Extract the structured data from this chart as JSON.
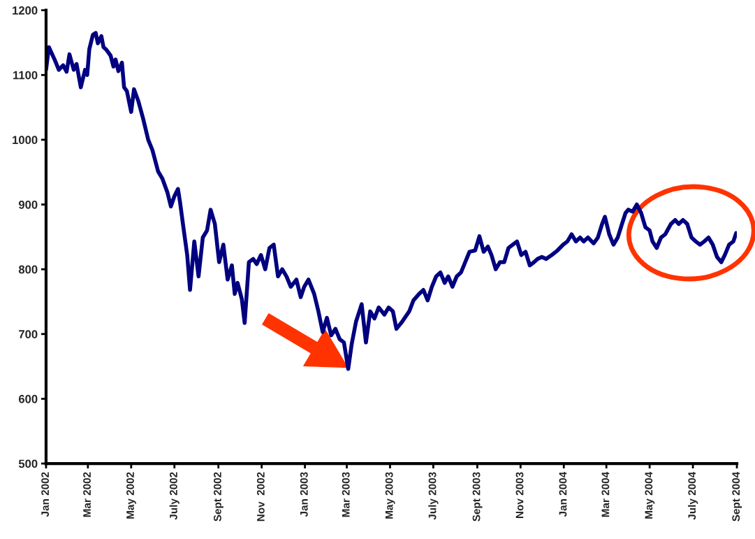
{
  "chart_data": {
    "type": "line",
    "x": [
      "2002-01-01",
      "2002-01-05",
      "2002-01-13",
      "2002-01-19",
      "2002-01-25",
      "2002-01-30",
      "2002-02-03",
      "2002-02-09",
      "2002-02-13",
      "2002-02-19",
      "2002-02-25",
      "2002-02-28",
      "2002-03-03",
      "2002-03-08",
      "2002-03-12",
      "2002-03-15",
      "2002-03-20",
      "2002-03-23",
      "2002-03-27",
      "2002-04-02",
      "2002-04-06",
      "2002-04-09",
      "2002-04-13",
      "2002-04-18",
      "2002-04-21",
      "2002-04-25",
      "2002-05-01",
      "2002-05-05",
      "2002-05-11",
      "2002-05-18",
      "2002-05-25",
      "2002-05-31",
      "2002-06-08",
      "2002-06-14",
      "2002-06-21",
      "2002-06-26",
      "2002-07-01",
      "2002-07-06",
      "2002-07-09",
      "2002-07-13",
      "2002-07-19",
      "2002-07-23",
      "2002-07-29",
      "2002-08-04",
      "2002-08-10",
      "2002-08-16",
      "2002-08-21",
      "2002-08-27",
      "2002-09-02",
      "2002-09-08",
      "2002-09-14",
      "2002-09-20",
      "2002-09-24",
      "2002-09-28",
      "2002-10-04",
      "2002-10-08",
      "2002-10-14",
      "2002-10-20",
      "2002-10-25",
      "2002-10-31",
      "2002-11-06",
      "2002-11-12",
      "2002-11-18",
      "2002-11-24",
      "2002-11-30",
      "2002-12-06",
      "2002-12-12",
      "2002-12-20",
      "2002-12-26",
      "2002-12-31",
      "2003-01-06",
      "2003-01-14",
      "2003-01-20",
      "2003-01-26",
      "2003-02-01",
      "2003-02-07",
      "2003-02-13",
      "2003-02-19",
      "2003-02-25",
      "2003-03-03",
      "2003-03-08",
      "2003-03-14",
      "2003-03-22",
      "2003-03-28",
      "2003-04-03",
      "2003-04-09",
      "2003-04-15",
      "2003-04-23",
      "2003-04-29",
      "2003-05-05",
      "2003-05-10",
      "2003-05-18",
      "2003-05-28",
      "2003-06-03",
      "2003-06-11",
      "2003-06-17",
      "2003-06-23",
      "2003-06-29",
      "2003-07-05",
      "2003-07-11",
      "2003-07-17",
      "2003-07-22",
      "2003-07-28",
      "2003-08-03",
      "2003-08-09",
      "2003-08-15",
      "2003-08-21",
      "2003-08-29",
      "2003-09-04",
      "2003-09-10",
      "2003-09-16",
      "2003-09-21",
      "2003-09-27",
      "2003-10-03",
      "2003-10-09",
      "2003-10-15",
      "2003-10-21",
      "2003-10-27",
      "2003-11-02",
      "2003-11-08",
      "2003-11-14",
      "2003-11-20",
      "2003-11-25",
      "2003-12-01",
      "2003-12-07",
      "2003-12-15",
      "2003-12-23",
      "2003-12-31",
      "2004-01-06",
      "2004-01-12",
      "2004-01-18",
      "2004-01-24",
      "2004-01-29",
      "2004-02-04",
      "2004-02-12",
      "2004-02-18",
      "2004-02-24",
      "2004-02-28",
      "2004-03-05",
      "2004-03-11",
      "2004-03-17",
      "2004-03-23",
      "2004-03-28",
      "2004-04-01",
      "2004-04-07",
      "2004-04-13",
      "2004-04-19",
      "2004-04-25",
      "2004-05-01",
      "2004-05-05",
      "2004-05-11",
      "2004-05-17",
      "2004-05-23",
      "2004-05-31",
      "2004-06-06",
      "2004-06-11",
      "2004-06-17",
      "2004-06-23",
      "2004-06-29",
      "2004-07-05",
      "2004-07-11",
      "2004-07-17",
      "2004-07-23",
      "2004-07-29",
      "2004-08-04",
      "2004-08-10",
      "2004-08-15",
      "2004-08-21",
      "2004-08-27",
      "2004-08-31"
    ],
    "series": [
      {
        "color": "#000080",
        "values": [
          1108,
          1143,
          1124,
          1108,
          1115,
          1105,
          1132,
          1108,
          1117,
          1081,
          1108,
          1100,
          1140,
          1162,
          1165,
          1149,
          1160,
          1143,
          1139,
          1130,
          1113,
          1124,
          1106,
          1119,
          1081,
          1075,
          1043,
          1078,
          1060,
          1032,
          1000,
          984,
          951,
          940,
          919,
          897,
          913,
          924,
          903,
          870,
          822,
          768,
          843,
          789,
          849,
          860,
          892,
          870,
          811,
          838,
          784,
          806,
          762,
          779,
          754,
          717,
          811,
          816,
          808,
          822,
          800,
          833,
          838,
          789,
          800,
          789,
          773,
          784,
          757,
          773,
          784,
          762,
          735,
          703,
          725,
          698,
          708,
          692,
          687,
          646,
          685,
          719,
          746,
          687,
          735,
          724,
          741,
          730,
          741,
          735,
          708,
          719,
          735,
          752,
          762,
          768,
          752,
          773,
          789,
          795,
          779,
          789,
          773,
          789,
          795,
          811,
          827,
          829,
          851,
          827,
          835,
          822,
          800,
          811,
          811,
          833,
          838,
          843,
          822,
          827,
          806,
          811,
          816,
          819,
          816,
          822,
          829,
          838,
          843,
          854,
          843,
          849,
          843,
          849,
          840,
          849,
          870,
          881,
          854,
          838,
          849,
          870,
          887,
          892,
          889,
          900,
          887,
          865,
          860,
          843,
          833,
          849,
          854,
          870,
          876,
          870,
          876,
          870,
          849,
          843,
          838,
          843,
          849,
          838,
          819,
          811,
          822,
          838,
          843,
          856
        ]
      }
    ],
    "xlim": [
      "2002-01-01",
      "2004-09-01"
    ],
    "xticks": [
      {
        "value": "2002-01-01",
        "label": "Jan 2002"
      },
      {
        "value": "2002-03-01",
        "label": "Mar 2002"
      },
      {
        "value": "2002-05-01",
        "label": "May 2002"
      },
      {
        "value": "2002-07-01",
        "label": "July 2002"
      },
      {
        "value": "2002-09-01",
        "label": "Sept 2002"
      },
      {
        "value": "2002-11-01",
        "label": "Nov  2002"
      },
      {
        "value": "2003-01-01",
        "label": "Jan 2003"
      },
      {
        "value": "2003-03-01",
        "label": "Mar 2003"
      },
      {
        "value": "2003-05-01",
        "label": "May 2003"
      },
      {
        "value": "2003-07-01",
        "label": "July 2003"
      },
      {
        "value": "2003-09-01",
        "label": "Sept 2003"
      },
      {
        "value": "2003-11-01",
        "label": "Nov 2003"
      },
      {
        "value": "2004-01-01",
        "label": "Jan 2004"
      },
      {
        "value": "2004-03-01",
        "label": "Mar 2004"
      },
      {
        "value": "2004-05-01",
        "label": "May 2004"
      },
      {
        "value": "2004-07-01",
        "label": "July 2004"
      },
      {
        "value": "2004-09-01",
        "label": "Sept 2004"
      }
    ],
    "ylim": [
      500,
      1200
    ],
    "yticks": [
      500,
      600,
      700,
      800,
      900,
      1000,
      1100,
      1200
    ],
    "grid": false,
    "marker": "none",
    "line_style": "solid"
  }
}
